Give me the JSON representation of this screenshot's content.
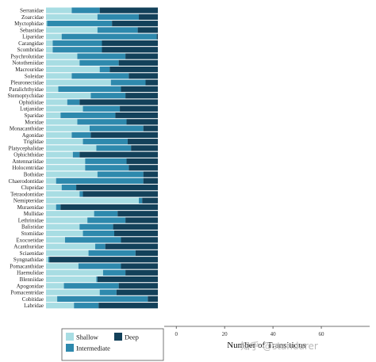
{
  "chart_data": {
    "type": "bar",
    "stacked": true,
    "orientation": "horizontal",
    "normalized": true,
    "categories": [
      "Serranidae",
      "Zoarcidae",
      "Myctophidae",
      "Sebastidae",
      "Liparidae",
      "Carangidae",
      "Scombridae",
      "Psychrolutidae",
      "Nototheniidae",
      "Macrouridae",
      "Soleidae",
      "Pleuronectidae",
      "Paralichthyidae",
      "Sternoptychidae",
      "Ophidiidae",
      "Lutjanidae",
      "Sparidae",
      "Moridae",
      "Monacanthidae",
      "Agonidae",
      "Triglidae",
      "Platycephalidae",
      "Ophichthidae",
      "Antennariidae",
      "Holocentridae",
      "Bothidae",
      "Chaerodontidae",
      "Clupeidae",
      "Tetraodontidae",
      "Nemipteridae",
      "Muraenidae",
      "Mullidae",
      "Lethrinidae",
      "Balistidae",
      "Stomiidae",
      "Exocoetidae",
      "Acanthuridae",
      "Sciaenidae",
      "Syngnathidae",
      "Pomacanthidae",
      "Haemulidae",
      "Blenniidae",
      "Apogonidae",
      "Pomacentridae",
      "Cobitidae",
      "Labridae"
    ],
    "series": [
      {
        "name": "Shallow",
        "color": "#a8dde3",
        "values": [
          0.23,
          0.46,
          0.01,
          0.46,
          0.14,
          0.06,
          0.06,
          0.28,
          0.3,
          0.48,
          0.23,
          0.58,
          0.11,
          0.4,
          0.19,
          0.33,
          0.13,
          0.28,
          0.39,
          0.23,
          0.33,
          0.45,
          0.24,
          0.35,
          0.35,
          0.46,
          0.09,
          0.14,
          0.3,
          0.83,
          0.09,
          0.43,
          0.37,
          0.3,
          0.33,
          0.17,
          0.44,
          0.38,
          0.02,
          0.29,
          0.51,
          0.45,
          0.16,
          0.48,
          0.1,
          0.25
        ]
      },
      {
        "name": "Intermediate",
        "color": "#2e89ad",
        "values": [
          0.25,
          0.37,
          0.58,
          0.36,
          0.85,
          0.44,
          0.44,
          0.43,
          0.35,
          0.09,
          0.51,
          0.31,
          0.56,
          0.31,
          0.11,
          0.33,
          0.49,
          0.44,
          0.48,
          0.17,
          0.4,
          0.31,
          0.06,
          0.37,
          0.39,
          0.41,
          0.78,
          0.13,
          0.03,
          0.03,
          0.04,
          0.21,
          0.34,
          0.3,
          0.28,
          0.5,
          0.09,
          0.42,
          0.01,
          0.38,
          0.2,
          0.01,
          0.49,
          0.15,
          0.81,
          0.22
        ]
      },
      {
        "name": "Deep",
        "color": "#13415a",
        "values": [
          0.52,
          0.17,
          0.41,
          0.18,
          0.01,
          0.5,
          0.5,
          0.29,
          0.35,
          0.43,
          0.26,
          0.11,
          0.33,
          0.29,
          0.7,
          0.34,
          0.38,
          0.28,
          0.13,
          0.6,
          0.27,
          0.24,
          0.7,
          0.28,
          0.26,
          0.13,
          0.13,
          0.73,
          0.67,
          0.14,
          0.87,
          0.36,
          0.29,
          0.4,
          0.39,
          0.33,
          0.47,
          0.2,
          0.97,
          0.33,
          0.29,
          0.54,
          0.35,
          0.37,
          0.09,
          0.53
        ]
      }
    ],
    "xlim": [
      0,
      1
    ],
    "legend_position": "bottom",
    "legend_order": [
      "Shallow",
      "Deep",
      "Intermediate"
    ],
    "grid": false
  },
  "secondary_axis": {
    "xlabel": "Number of Transitions",
    "xlim": [
      -5,
      80
    ],
    "ticks": [
      0,
      20,
      40,
      60
    ]
  },
  "watermark": "知乎 @standarer"
}
